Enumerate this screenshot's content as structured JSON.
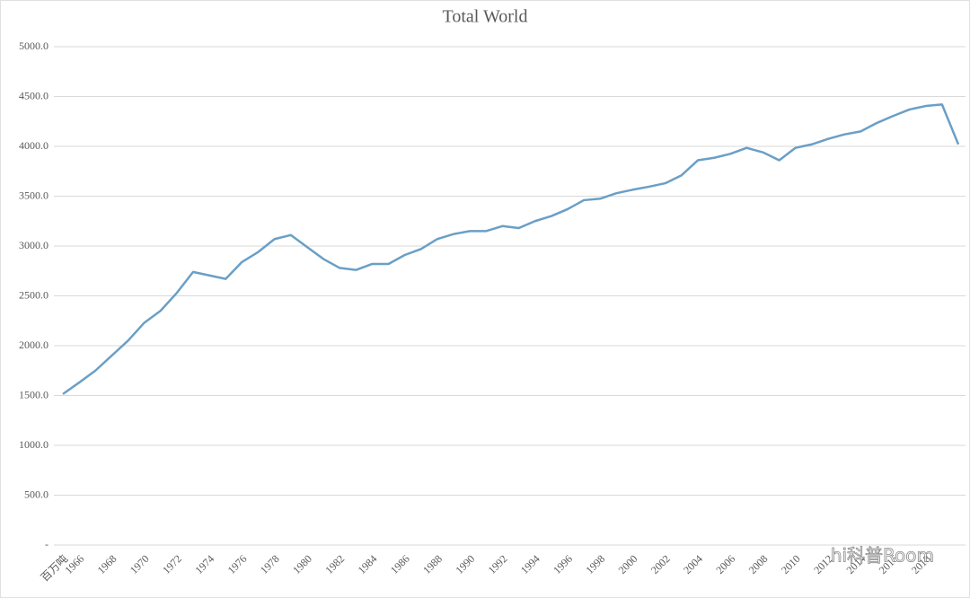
{
  "chart_data": {
    "type": "line",
    "title": "Total World",
    "categories": [
      "百万吨",
      "1966",
      null,
      "1968",
      null,
      "1970",
      null,
      "1972",
      null,
      "1974",
      null,
      "1976",
      null,
      "1978",
      null,
      "1980",
      null,
      "1982",
      null,
      "1984",
      null,
      "1986",
      null,
      "1988",
      null,
      "1990",
      null,
      "1992",
      null,
      "1994",
      null,
      "1996",
      null,
      "1998",
      null,
      "2000",
      null,
      "2002",
      null,
      "2004",
      null,
      "2006",
      null,
      "2008",
      null,
      "2010",
      null,
      "2012",
      null,
      "2014",
      null,
      "2016",
      null,
      "2018",
      null,
      null
    ],
    "series": [
      {
        "name": "Total World",
        "color": "#6a9fc6",
        "values": [
          1515,
          1630,
          1750,
          1900,
          2050,
          2230,
          2350,
          2530,
          2740,
          2705,
          2670,
          2840,
          2940,
          3070,
          3110,
          2990,
          2870,
          2780,
          2760,
          2820,
          2820,
          2910,
          2970,
          3070,
          3120,
          3150,
          3150,
          3200,
          3180,
          3250,
          3300,
          3370,
          3460,
          3475,
          3530,
          3565,
          3595,
          3630,
          3710,
          3860,
          3885,
          3925,
          3985,
          3940,
          3860,
          3985,
          4020,
          4075,
          4120,
          4150,
          4235,
          4305,
          4370,
          4405,
          4420,
          4020
        ]
      }
    ],
    "ylim": [
      0,
      5000
    ],
    "yticks": [
      {
        "value": 0,
        "label": "-"
      },
      {
        "value": 500,
        "label": "500.0"
      },
      {
        "value": 1000,
        "label": "1000.0"
      },
      {
        "value": 1500,
        "label": "1500.0"
      },
      {
        "value": 2000,
        "label": "2000.0"
      },
      {
        "value": 2500,
        "label": "2500.0"
      },
      {
        "value": 3000,
        "label": "3000.0"
      },
      {
        "value": 3500,
        "label": "3500.0"
      },
      {
        "value": 4000,
        "label": "4000.0"
      },
      {
        "value": 4500,
        "label": "4500.0"
      },
      {
        "value": 5000,
        "label": "5000.0"
      }
    ],
    "grid": true,
    "watermark": "hi科普Room"
  }
}
